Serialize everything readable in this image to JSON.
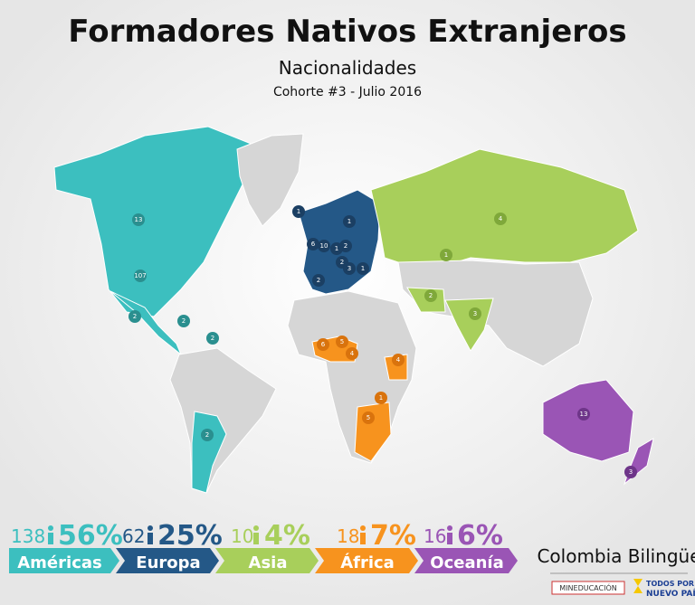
{
  "header": {
    "title": "Formadores Nativos Extranjeros",
    "subtitle": "Nacionalidades",
    "cohort": "Cohorte #3 - Julio 2016"
  },
  "pins": [
    {
      "label": "13"
    },
    {
      "label": "107"
    },
    {
      "label": "2"
    },
    {
      "label": "2"
    },
    {
      "label": "2"
    },
    {
      "label": "2"
    },
    {
      "label": "1"
    },
    {
      "label": "6"
    },
    {
      "label": "10"
    },
    {
      "label": "1"
    },
    {
      "label": "2"
    },
    {
      "label": "1"
    },
    {
      "label": "2"
    },
    {
      "label": "3"
    },
    {
      "label": "1"
    },
    {
      "label": "2"
    },
    {
      "label": "4"
    },
    {
      "label": "1"
    },
    {
      "label": "2"
    },
    {
      "label": "3"
    },
    {
      "label": "6"
    },
    {
      "label": "5"
    },
    {
      "label": "4"
    },
    {
      "label": "4"
    },
    {
      "label": "1"
    },
    {
      "label": "5"
    },
    {
      "label": "13"
    },
    {
      "label": "3"
    }
  ],
  "regions": [
    {
      "count": "138",
      "percent": "56%",
      "name": "Américas"
    },
    {
      "count": "62",
      "percent": "25%",
      "name": "Europa"
    },
    {
      "count": "10",
      "percent": "4%",
      "name": "Asia"
    },
    {
      "count": "18",
      "percent": "7%",
      "name": "África"
    },
    {
      "count": "16",
      "percent": "6%",
      "name": "Oceanía"
    }
  ],
  "logos": {
    "brand": "Colombia Bilingüe",
    "ministry": "MINEDUCACIÓN",
    "slogan_top": "TODOS POR UN",
    "slogan_bottom": "NUEVO PAÍS"
  }
}
